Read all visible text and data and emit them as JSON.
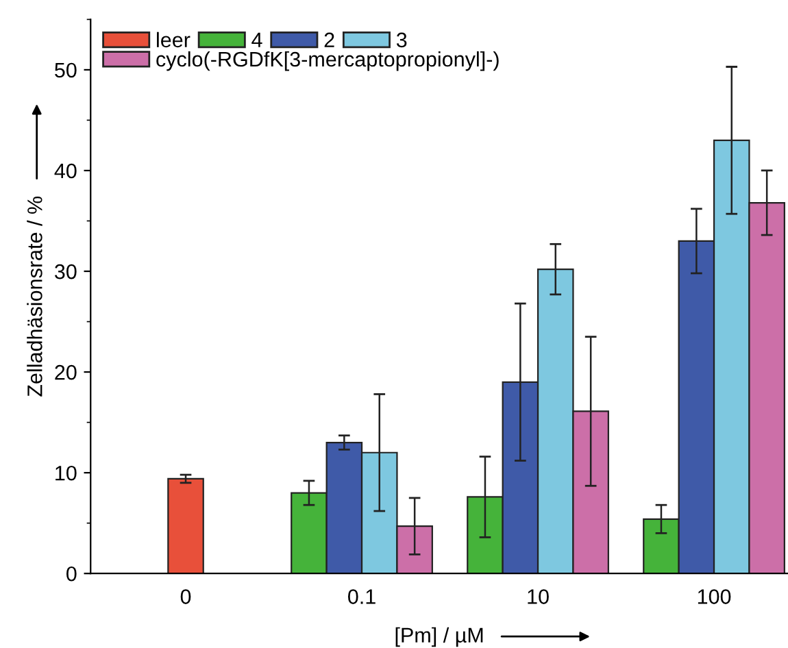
{
  "chart_data": {
    "type": "bar",
    "xlabel": "[Pm] / µM",
    "ylabel": "Zelladhäsionsrate / %",
    "categories": [
      "0",
      "0.1",
      "10",
      "100"
    ],
    "series": [
      {
        "name": "leer",
        "color": "#e8503a",
        "values": [
          9.4,
          null,
          null,
          null
        ],
        "errors": [
          0.4,
          null,
          null,
          null
        ]
      },
      {
        "name": "4",
        "color": "#45b33a",
        "values": [
          null,
          8.0,
          7.6,
          5.4
        ],
        "errors": [
          null,
          1.2,
          4.0,
          1.4
        ]
      },
      {
        "name": "2",
        "color": "#3f5aa8",
        "values": [
          null,
          13.0,
          19.0,
          33.0
        ],
        "errors": [
          null,
          0.7,
          7.8,
          3.2
        ]
      },
      {
        "name": "3",
        "color": "#7ec8e0",
        "values": [
          null,
          12.0,
          30.2,
          43.0
        ],
        "errors": [
          null,
          5.8,
          2.5,
          7.3
        ]
      },
      {
        "name": "cyclo(-RGDfK[3-mercaptopropionyl]-)",
        "color": "#cc6fa8",
        "values": [
          null,
          4.7,
          16.1,
          36.8
        ],
        "errors": [
          null,
          2.8,
          7.4,
          3.2
        ]
      }
    ],
    "ylim": [
      0,
      55
    ],
    "yticks": [
      0,
      10,
      20,
      30,
      40,
      50
    ],
    "grid": false,
    "legend": "top left"
  }
}
